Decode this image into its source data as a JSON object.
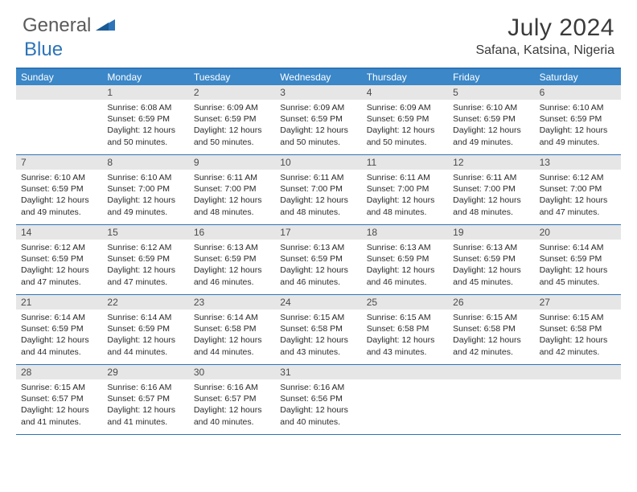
{
  "logo": {
    "part1": "General",
    "part2": "Blue"
  },
  "title": "July 2024",
  "location": "Safana, Katsina, Nigeria",
  "colors": {
    "header_blue": "#3b87c8",
    "border_blue": "#2d74b8",
    "daynum_bg": "#e6e6e6",
    "text_dark": "#2a2a2a",
    "text_gray": "#5a5a5a"
  },
  "weekdays": [
    "Sunday",
    "Monday",
    "Tuesday",
    "Wednesday",
    "Thursday",
    "Friday",
    "Saturday"
  ],
  "weeks": [
    [
      null,
      {
        "n": "1",
        "sr": "6:08 AM",
        "ss": "6:59 PM",
        "dl": "12 hours and 50 minutes."
      },
      {
        "n": "2",
        "sr": "6:09 AM",
        "ss": "6:59 PM",
        "dl": "12 hours and 50 minutes."
      },
      {
        "n": "3",
        "sr": "6:09 AM",
        "ss": "6:59 PM",
        "dl": "12 hours and 50 minutes."
      },
      {
        "n": "4",
        "sr": "6:09 AM",
        "ss": "6:59 PM",
        "dl": "12 hours and 50 minutes."
      },
      {
        "n": "5",
        "sr": "6:10 AM",
        "ss": "6:59 PM",
        "dl": "12 hours and 49 minutes."
      },
      {
        "n": "6",
        "sr": "6:10 AM",
        "ss": "6:59 PM",
        "dl": "12 hours and 49 minutes."
      }
    ],
    [
      {
        "n": "7",
        "sr": "6:10 AM",
        "ss": "6:59 PM",
        "dl": "12 hours and 49 minutes."
      },
      {
        "n": "8",
        "sr": "6:10 AM",
        "ss": "7:00 PM",
        "dl": "12 hours and 49 minutes."
      },
      {
        "n": "9",
        "sr": "6:11 AM",
        "ss": "7:00 PM",
        "dl": "12 hours and 48 minutes."
      },
      {
        "n": "10",
        "sr": "6:11 AM",
        "ss": "7:00 PM",
        "dl": "12 hours and 48 minutes."
      },
      {
        "n": "11",
        "sr": "6:11 AM",
        "ss": "7:00 PM",
        "dl": "12 hours and 48 minutes."
      },
      {
        "n": "12",
        "sr": "6:11 AM",
        "ss": "7:00 PM",
        "dl": "12 hours and 48 minutes."
      },
      {
        "n": "13",
        "sr": "6:12 AM",
        "ss": "7:00 PM",
        "dl": "12 hours and 47 minutes."
      }
    ],
    [
      {
        "n": "14",
        "sr": "6:12 AM",
        "ss": "6:59 PM",
        "dl": "12 hours and 47 minutes."
      },
      {
        "n": "15",
        "sr": "6:12 AM",
        "ss": "6:59 PM",
        "dl": "12 hours and 47 minutes."
      },
      {
        "n": "16",
        "sr": "6:13 AM",
        "ss": "6:59 PM",
        "dl": "12 hours and 46 minutes."
      },
      {
        "n": "17",
        "sr": "6:13 AM",
        "ss": "6:59 PM",
        "dl": "12 hours and 46 minutes."
      },
      {
        "n": "18",
        "sr": "6:13 AM",
        "ss": "6:59 PM",
        "dl": "12 hours and 46 minutes."
      },
      {
        "n": "19",
        "sr": "6:13 AM",
        "ss": "6:59 PM",
        "dl": "12 hours and 45 minutes."
      },
      {
        "n": "20",
        "sr": "6:14 AM",
        "ss": "6:59 PM",
        "dl": "12 hours and 45 minutes."
      }
    ],
    [
      {
        "n": "21",
        "sr": "6:14 AM",
        "ss": "6:59 PM",
        "dl": "12 hours and 44 minutes."
      },
      {
        "n": "22",
        "sr": "6:14 AM",
        "ss": "6:59 PM",
        "dl": "12 hours and 44 minutes."
      },
      {
        "n": "23",
        "sr": "6:14 AM",
        "ss": "6:58 PM",
        "dl": "12 hours and 44 minutes."
      },
      {
        "n": "24",
        "sr": "6:15 AM",
        "ss": "6:58 PM",
        "dl": "12 hours and 43 minutes."
      },
      {
        "n": "25",
        "sr": "6:15 AM",
        "ss": "6:58 PM",
        "dl": "12 hours and 43 minutes."
      },
      {
        "n": "26",
        "sr": "6:15 AM",
        "ss": "6:58 PM",
        "dl": "12 hours and 42 minutes."
      },
      {
        "n": "27",
        "sr": "6:15 AM",
        "ss": "6:58 PM",
        "dl": "12 hours and 42 minutes."
      }
    ],
    [
      {
        "n": "28",
        "sr": "6:15 AM",
        "ss": "6:57 PM",
        "dl": "12 hours and 41 minutes."
      },
      {
        "n": "29",
        "sr": "6:16 AM",
        "ss": "6:57 PM",
        "dl": "12 hours and 41 minutes."
      },
      {
        "n": "30",
        "sr": "6:16 AM",
        "ss": "6:57 PM",
        "dl": "12 hours and 40 minutes."
      },
      {
        "n": "31",
        "sr": "6:16 AM",
        "ss": "6:56 PM",
        "dl": "12 hours and 40 minutes."
      },
      null,
      null,
      null
    ]
  ],
  "labels": {
    "sunrise": "Sunrise:",
    "sunset": "Sunset:",
    "daylight": "Daylight:"
  }
}
